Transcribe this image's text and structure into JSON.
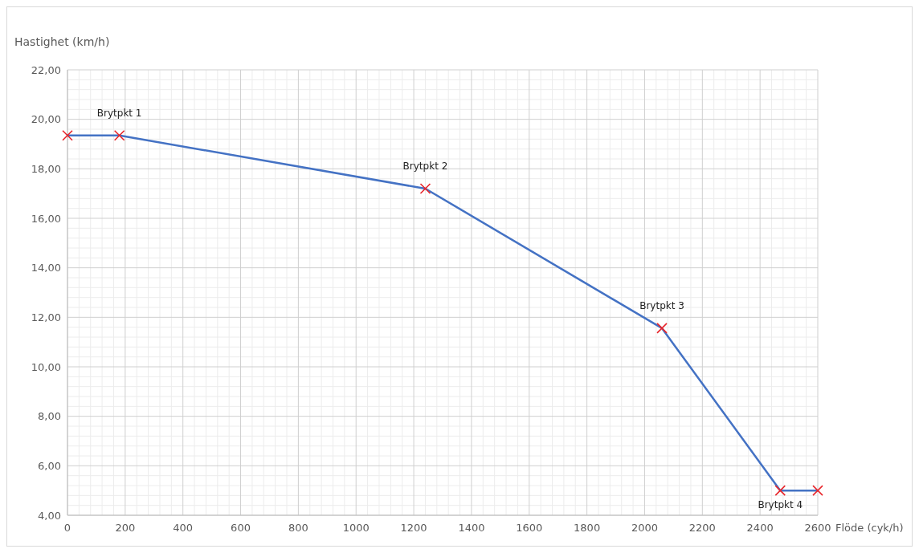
{
  "chart_data": {
    "type": "line",
    "ylabel": "Hastighet (km/h)",
    "xlabel": "Flöde (cyk/h)",
    "x": [
      0,
      180,
      1240,
      2060,
      2470,
      2600
    ],
    "series": [
      {
        "color": "#4472c4",
        "values": [
          19.35,
          19.35,
          17.2,
          11.56,
          5.0,
          5.0
        ]
      }
    ],
    "marker": "cross",
    "grid": true,
    "xlim": [
      0,
      2600
    ],
    "xticks": [
      0,
      200,
      400,
      600,
      800,
      1000,
      1200,
      1400,
      1600,
      1800,
      2000,
      2200,
      2400,
      2600
    ],
    "ylim": [
      4,
      22
    ],
    "yticks": [
      {
        "value": 4,
        "label": "4,00"
      },
      {
        "value": 6,
        "label": "6,00"
      },
      {
        "value": 8,
        "label": "8,00"
      },
      {
        "value": 10,
        "label": "10,00"
      },
      {
        "value": 12,
        "label": "12,00"
      },
      {
        "value": 14,
        "label": "14,00"
      },
      {
        "value": 16,
        "label": "16,00"
      },
      {
        "value": 18,
        "label": "18,00"
      },
      {
        "value": 20,
        "label": "20,00"
      },
      {
        "value": 22,
        "label": "22,00"
      }
    ],
    "annotations": [
      {
        "text": "Brytpkt 1",
        "x": 180,
        "y": 19.35
      },
      {
        "text": "Brytpkt 2",
        "x": 1240,
        "y": 17.2
      },
      {
        "text": "Brytpkt 3",
        "x": 2060,
        "y": 11.56
      },
      {
        "text": "Brytpkt 4",
        "x": 2470,
        "y": 5.0
      }
    ]
  }
}
